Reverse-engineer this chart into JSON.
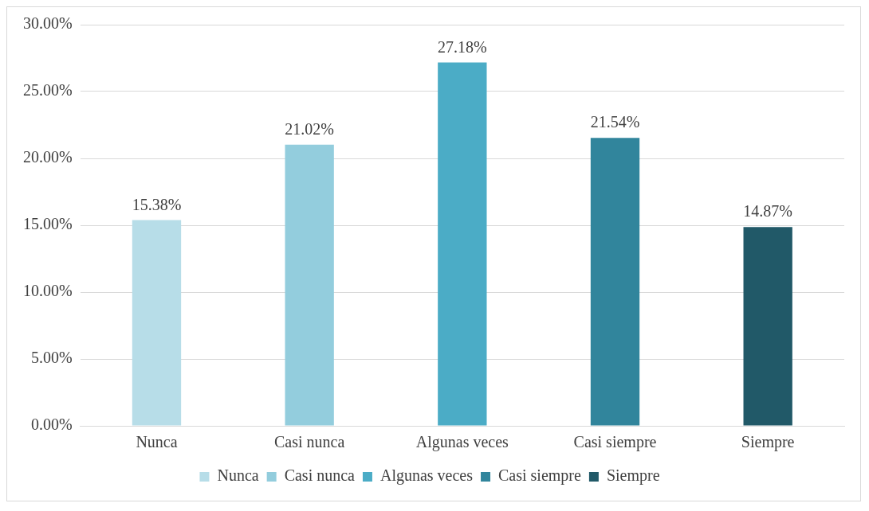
{
  "chart_data": {
    "type": "bar",
    "categories": [
      "Nunca",
      "Casi nunca",
      "Algunas veces",
      "Casi siempre",
      "Siempre"
    ],
    "series": [
      {
        "name": "Nunca",
        "color": "#b7dde8",
        "values": [
          15.38,
          null,
          null,
          null,
          null
        ],
        "value_labels": [
          "15.38%",
          null,
          null,
          null,
          null
        ]
      },
      {
        "name": "Casi nunca",
        "color": "#93cddd",
        "values": [
          null,
          21.02,
          null,
          null,
          null
        ],
        "value_labels": [
          null,
          "21.02%",
          null,
          null,
          null
        ]
      },
      {
        "name": "Algunas veces",
        "color": "#4bacc6",
        "values": [
          null,
          null,
          27.18,
          null,
          null
        ],
        "value_labels": [
          null,
          null,
          "27.18%",
          null,
          null
        ]
      },
      {
        "name": "Casi siempre",
        "color": "#31859c",
        "values": [
          null,
          null,
          null,
          21.54,
          null
        ],
        "value_labels": [
          null,
          null,
          null,
          "21.54%",
          null
        ]
      },
      {
        "name": "Siempre",
        "color": "#215968",
        "values": [
          null,
          null,
          null,
          null,
          14.87
        ],
        "value_labels": [
          null,
          null,
          null,
          null,
          "14.87%"
        ]
      }
    ],
    "ylim": [
      0,
      30
    ],
    "yticks": [
      {
        "value": 0,
        "label": "0.00%"
      },
      {
        "value": 5,
        "label": "5.00%"
      },
      {
        "value": 10,
        "label": "10.00%"
      },
      {
        "value": 15,
        "label": "15.00%"
      },
      {
        "value": 20,
        "label": "20.00%"
      },
      {
        "value": 25,
        "label": "25.00%"
      },
      {
        "value": 30,
        "label": "30.00%"
      }
    ],
    "grid": "y",
    "legend": "bottom"
  }
}
